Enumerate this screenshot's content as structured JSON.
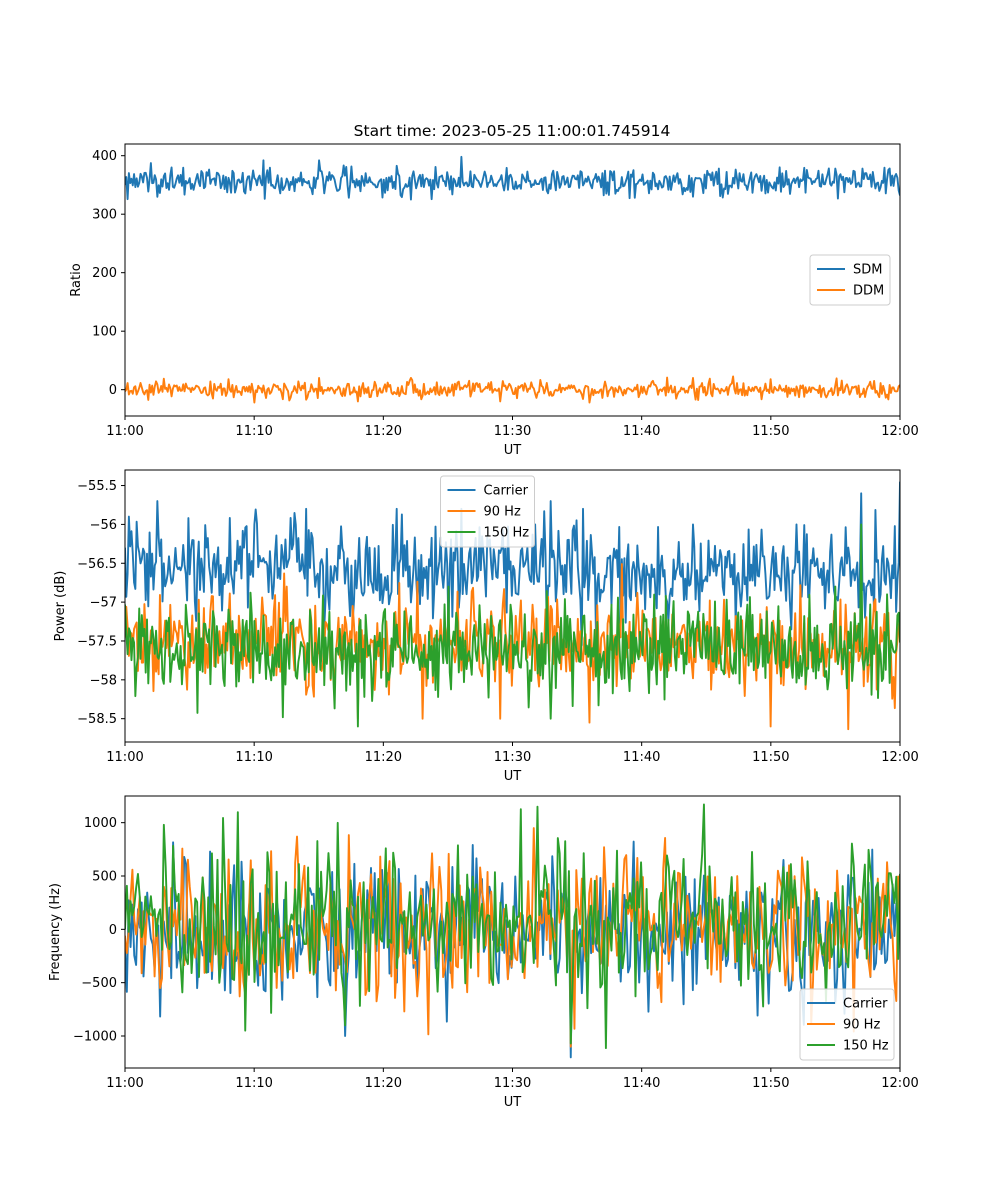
{
  "figure_title": "Start time: 2023-05-25 11:00:01.745914",
  "chart_data": [
    {
      "type": "line",
      "title": "Start time: 2023-05-25 11:00:01.745914",
      "xlabel": "UT",
      "ylabel": "Ratio",
      "x_range": [
        "11:00",
        "12:00"
      ],
      "x_ticks": [
        "11:00",
        "11:10",
        "11:20",
        "11:30",
        "11:40",
        "11:50",
        "12:00"
      ],
      "ylim": [
        -45,
        420
      ],
      "y_ticks": [
        0,
        100,
        200,
        300,
        400
      ],
      "legend_position": "center-right",
      "grid": false,
      "series": [
        {
          "name": "SDM",
          "color": "#1f77b4",
          "mean": 356,
          "noise_std": 12,
          "samples": 600,
          "anchors": [
            [
              0,
              350
            ],
            [
              1,
              347
            ],
            [
              3,
              365
            ],
            [
              6,
              370
            ],
            [
              9,
              355
            ],
            [
              14,
              355
            ],
            [
              15,
              392
            ],
            [
              19,
              355
            ],
            [
              25,
              360
            ],
            [
              26,
              398
            ],
            [
              29,
              360
            ],
            [
              34,
              365
            ],
            [
              37,
              370
            ],
            [
              38,
              335
            ],
            [
              42,
              360
            ],
            [
              44,
              330
            ],
            [
              46,
              370
            ],
            [
              46,
              378
            ],
            [
              50,
              350
            ],
            [
              52,
              360
            ],
            [
              56,
              355
            ],
            [
              59,
              360
            ],
            [
              60,
              332
            ]
          ]
        },
        {
          "name": "DDM",
          "color": "#ff7f0e",
          "mean": 0,
          "noise_std": 7,
          "samples": 600,
          "anchors": [
            [
              0,
              -3
            ],
            [
              8,
              18
            ],
            [
              10,
              -22
            ],
            [
              15,
              20
            ],
            [
              18,
              -20
            ],
            [
              22,
              15
            ],
            [
              29,
              -20
            ],
            [
              36,
              -22
            ],
            [
              44,
              20
            ],
            [
              50,
              18
            ],
            [
              58,
              15
            ],
            [
              60,
              8
            ]
          ]
        }
      ]
    },
    {
      "type": "line",
      "xlabel": "UT",
      "ylabel": "Power (dB)",
      "x_range": [
        "11:00",
        "12:00"
      ],
      "x_ticks": [
        "11:00",
        "11:10",
        "11:20",
        "11:30",
        "11:40",
        "11:50",
        "12:00"
      ],
      "ylim": [
        -58.8,
        -55.3
      ],
      "y_ticks": [
        -58.5,
        -58.0,
        -57.5,
        -57.0,
        -56.5,
        -56.0,
        -55.5
      ],
      "legend_position": "top-center",
      "grid": false,
      "series": [
        {
          "name": "Carrier",
          "color": "#1f77b4",
          "mean": -56.6,
          "noise_std": 0.3,
          "samples": 600,
          "anchors": [
            [
              0,
              -56.3
            ],
            [
              0.3,
              -55.9
            ],
            [
              2.5,
              -55.7
            ],
            [
              10,
              -56.0
            ],
            [
              14,
              -55.8
            ],
            [
              21,
              -55.8
            ],
            [
              26,
              -55.8
            ],
            [
              33,
              -55.7
            ],
            [
              44,
              -56.0
            ],
            [
              52,
              -56.0
            ],
            [
              57,
              -55.6
            ],
            [
              60,
              -55.45
            ]
          ]
        },
        {
          "name": "90 Hz",
          "color": "#ff7f0e",
          "mean": -57.5,
          "noise_std": 0.3,
          "samples": 600,
          "anchors": [
            [
              18,
              -58.5
            ],
            [
              23,
              -58.5
            ],
            [
              29,
              -58.5
            ],
            [
              36,
              -58.55
            ],
            [
              50,
              -58.6
            ],
            [
              58,
              -57.0
            ]
          ]
        },
        {
          "name": "150 Hz",
          "color": "#2ca02c",
          "mean": -57.6,
          "noise_std": 0.3,
          "samples": 600,
          "anchors": [
            [
              18,
              -58.6
            ],
            [
              25,
              -56.8
            ],
            [
              33,
              -58.5
            ],
            [
              55,
              -56.8
            ],
            [
              57,
              -56.0
            ],
            [
              59,
              -56.9
            ]
          ]
        }
      ]
    },
    {
      "type": "line",
      "xlabel": "UT",
      "ylabel": "Frequency (Hz)",
      "x_range": [
        "11:00",
        "12:00"
      ],
      "x_ticks": [
        "11:00",
        "11:10",
        "11:20",
        "11:30",
        "11:40",
        "11:50",
        "12:00"
      ],
      "ylim": [
        -1300,
        1250
      ],
      "y_ticks": [
        -1000,
        -500,
        0,
        500,
        1000
      ],
      "legend_position": "bottom-right",
      "grid": false,
      "series": [
        {
          "name": "Carrier",
          "color": "#1f77b4",
          "mean": -30,
          "noise_std": 340,
          "samples": 420,
          "anchors": [
            [
              0,
              -120
            ],
            [
              17,
              -1000
            ],
            [
              34.5,
              -1200
            ],
            [
              60,
              -100
            ]
          ]
        },
        {
          "name": "90 Hz",
          "color": "#ff7f0e",
          "mean": 20,
          "noise_std": 340,
          "samples": 420,
          "anchors": [
            [
              0,
              -60
            ],
            [
              34.5,
              -1100
            ],
            [
              60,
              0
            ]
          ]
        },
        {
          "name": "150 Hz",
          "color": "#2ca02c",
          "mean": 70,
          "noise_std": 360,
          "samples": 420,
          "anchors": [
            [
              0,
              0
            ],
            [
              3,
              980
            ],
            [
              17,
              -900
            ],
            [
              32,
              1150
            ],
            [
              34.5,
              -1070
            ],
            [
              60,
              520
            ]
          ]
        }
      ]
    }
  ]
}
